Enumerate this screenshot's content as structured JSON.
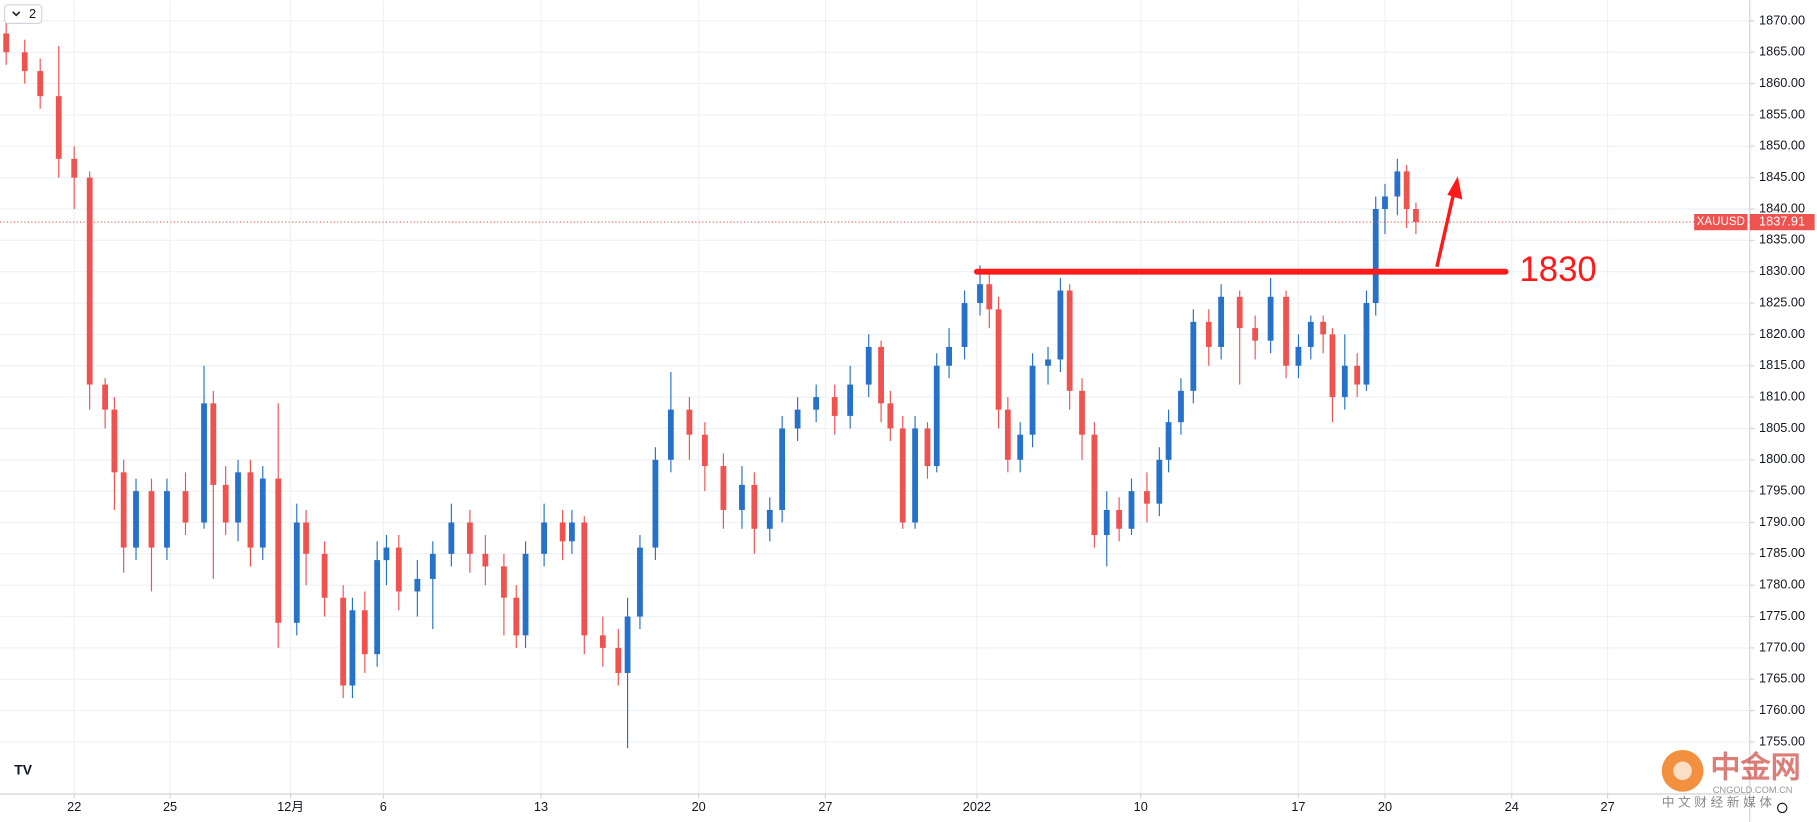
{
  "chart_data": {
    "type": "candlestick",
    "symbol": "XAUUSD",
    "up_color": "#2671c9",
    "down_color": "#ef5350",
    "grid": true,
    "x": [
      -2.2,
      -1.6,
      -1.1,
      -0.5,
      0.0,
      0.5,
      1.0,
      1.3,
      1.6,
      2.0,
      2.5,
      3.0,
      3.6,
      4.2,
      4.5,
      4.9,
      5.3,
      5.7,
      6.1,
      6.6,
      7.2,
      7.5,
      8.1,
      8.7,
      9.0,
      9.4,
      9.8,
      10.1,
      10.5,
      11.1,
      11.6,
      12.2,
      12.8,
      13.3,
      13.9,
      14.3,
      14.6,
      15.2,
      15.8,
      16.1,
      16.5,
      17.1,
      17.6,
      17.9,
      18.3,
      18.8,
      19.3,
      19.9,
      20.4,
      21.0,
      21.6,
      22.0,
      22.5,
      22.9,
      23.4,
      24.0,
      24.6,
      25.1,
      25.7,
      26.1,
      26.4,
      26.8,
      27.2,
      27.6,
      27.9,
      28.3,
      28.8,
      29.3,
      29.6,
      29.9,
      30.2,
      30.6,
      31.0,
      31.5,
      31.9,
      32.2,
      32.6,
      33.0,
      33.4,
      33.8,
      34.2,
      34.7,
      35.1,
      35.4,
      35.8,
      36.2,
      36.7,
      37.1,
      37.7,
      38.2,
      38.7,
      39.2,
      39.6,
      40.0,
      40.4,
      40.7,
      41.1,
      41.5,
      41.8,
      42.1,
      42.4,
      42.8,
      43.1,
      43.4
    ],
    "open": [
      1868,
      1865,
      1862,
      1858,
      1848,
      1845,
      1812,
      1808,
      1798,
      1786,
      1795,
      1786,
      1795,
      1790,
      1809,
      1796,
      1790,
      1798,
      1786,
      1797,
      1774,
      1790,
      1785,
      1778,
      1764,
      1776,
      1769,
      1784,
      1786,
      1779,
      1781,
      1785,
      1790,
      1785,
      1783,
      1778,
      1772,
      1785,
      1790,
      1787,
      1790,
      1772,
      1770,
      1766,
      1775,
      1786,
      1800,
      1808,
      1804,
      1799,
      1792,
      1796,
      1789,
      1792,
      1805,
      1808,
      1810,
      1807,
      1812,
      1818,
      1809,
      1805,
      1790,
      1805,
      1799,
      1815,
      1818,
      1825,
      1828,
      1824,
      1808,
      1800,
      1804,
      1815,
      1816,
      1827,
      1811,
      1804,
      1788,
      1792,
      1789,
      1795,
      1793,
      1800,
      1806,
      1811,
      1822,
      1818,
      1826,
      1821,
      1819,
      1826,
      1815,
      1818,
      1822,
      1820,
      1810,
      1815,
      1812,
      1825,
      1840,
      1842,
      1846,
      1840
    ],
    "high": [
      1870,
      1867,
      1864,
      1866,
      1850,
      1846,
      1813,
      1810,
      1800,
      1797,
      1797,
      1797,
      1798,
      1815,
      1811,
      1799,
      1800,
      1800,
      1799,
      1809,
      1793,
      1792,
      1787,
      1780,
      1778,
      1779,
      1787,
      1788,
      1788,
      1784,
      1787,
      1793,
      1792,
      1788,
      1785,
      1780,
      1787,
      1793,
      1792,
      1792,
      1791,
      1775,
      1773,
      1778,
      1788,
      1802,
      1814,
      1810,
      1806,
      1801,
      1799,
      1798,
      1794,
      1807,
      1810,
      1812,
      1812,
      1815,
      1820,
      1819,
      1811,
      1807,
      1807,
      1806,
      1817,
      1821,
      1827,
      1831,
      1830,
      1826,
      1810,
      1806,
      1817,
      1818,
      1829,
      1828,
      1813,
      1806,
      1795,
      1794,
      1797,
      1798,
      1802,
      1808,
      1813,
      1824,
      1824,
      1828,
      1827,
      1823,
      1829,
      1827,
      1820,
      1823,
      1823,
      1821,
      1820,
      1817,
      1827,
      1842,
      1844,
      1848,
      1847,
      1841
    ],
    "low": [
      1863,
      1860,
      1856,
      1845,
      1840,
      1808,
      1805,
      1792,
      1782,
      1784,
      1779,
      1784,
      1788,
      1789,
      1781,
      1788,
      1787,
      1783,
      1784,
      1770,
      1772,
      1780,
      1775,
      1762,
      1762,
      1766,
      1767,
      1780,
      1776,
      1775,
      1773,
      1783,
      1782,
      1780,
      1772,
      1770,
      1770,
      1783,
      1784,
      1785,
      1769,
      1767,
      1764,
      1754,
      1773,
      1784,
      1798,
      1800,
      1795,
      1789,
      1789,
      1785,
      1787,
      1790,
      1803,
      1806,
      1804,
      1805,
      1810,
      1806,
      1803,
      1789,
      1789,
      1797,
      1798,
      1813,
      1816,
      1823,
      1821,
      1805,
      1798,
      1798,
      1802,
      1812,
      1814,
      1808,
      1800,
      1786,
      1783,
      1787,
      1788,
      1790,
      1791,
      1798,
      1804,
      1809,
      1815,
      1816,
      1812,
      1816,
      1817,
      1813,
      1813,
      1816,
      1817,
      1806,
      1808,
      1810,
      1811,
      1823,
      1836,
      1839,
      1837,
      1836
    ],
    "close": [
      1865,
      1862,
      1858,
      1848,
      1845,
      1812,
      1808,
      1798,
      1786,
      1795,
      1786,
      1795,
      1790,
      1809,
      1796,
      1790,
      1798,
      1786,
      1797,
      1774,
      1790,
      1785,
      1778,
      1764,
      1776,
      1769,
      1784,
      1786,
      1779,
      1781,
      1785,
      1790,
      1785,
      1783,
      1778,
      1772,
      1785,
      1790,
      1787,
      1790,
      1772,
      1770,
      1766,
      1775,
      1786,
      1800,
      1808,
      1804,
      1799,
      1792,
      1796,
      1789,
      1792,
      1805,
      1808,
      1810,
      1807,
      1812,
      1818,
      1809,
      1805,
      1790,
      1805,
      1799,
      1815,
      1818,
      1825,
      1828,
      1824,
      1808,
      1800,
      1804,
      1815,
      1816,
      1827,
      1811,
      1804,
      1788,
      1792,
      1789,
      1795,
      1793,
      1800,
      1806,
      1811,
      1822,
      1818,
      1826,
      1821,
      1819,
      1826,
      1815,
      1818,
      1822,
      1820,
      1810,
      1815,
      1812,
      1825,
      1840,
      1842,
      1846,
      1840,
      1837.91
    ],
    "xlim": [
      -2.4,
      54.2
    ],
    "xticks": [
      {
        "value": 0,
        "label": "22"
      },
      {
        "value": 3.1,
        "label": "25"
      },
      {
        "value": 7.0,
        "label": "12月"
      },
      {
        "value": 10.0,
        "label": "6"
      },
      {
        "value": 15.1,
        "label": "13"
      },
      {
        "value": 20.2,
        "label": "20"
      },
      {
        "value": 24.3,
        "label": "27"
      },
      {
        "value": 29.2,
        "label": "2022"
      },
      {
        "value": 34.5,
        "label": "10"
      },
      {
        "value": 39.6,
        "label": "17"
      },
      {
        "value": 42.4,
        "label": "20"
      },
      {
        "value": 46.5,
        "label": "24"
      },
      {
        "value": 49.6,
        "label": "27"
      }
    ],
    "ylim": [
      1746.7,
      1873.3
    ],
    "yticks": [
      {
        "value": 1755,
        "label": "1755.00"
      },
      {
        "value": 1760,
        "label": "1760.00"
      },
      {
        "value": 1765,
        "label": "1765.00"
      },
      {
        "value": 1770,
        "label": "1770.00"
      },
      {
        "value": 1775,
        "label": "1775.00"
      },
      {
        "value": 1780,
        "label": "1780.00"
      },
      {
        "value": 1785,
        "label": "1785.00"
      },
      {
        "value": 1790,
        "label": "1790.00"
      },
      {
        "value": 1795,
        "label": "1795.00"
      },
      {
        "value": 1800,
        "label": "1800.00"
      },
      {
        "value": 1805,
        "label": "1805.00"
      },
      {
        "value": 1810,
        "label": "1810.00"
      },
      {
        "value": 1815,
        "label": "1815.00"
      },
      {
        "value": 1820,
        "label": "1820.00"
      },
      {
        "value": 1825,
        "label": "1825.00"
      },
      {
        "value": 1830,
        "label": "1830.00"
      },
      {
        "value": 1835,
        "label": "1835.00"
      },
      {
        "value": 1840,
        "label": "1840.00"
      },
      {
        "value": 1845,
        "label": "1845.00"
      },
      {
        "value": 1850,
        "label": "1850.00"
      },
      {
        "value": 1855,
        "label": "1855.00"
      },
      {
        "value": 1860,
        "label": "1860.00"
      },
      {
        "value": 1865,
        "label": "1865.00"
      },
      {
        "value": 1870,
        "label": "1870.00"
      }
    ],
    "annotation": {
      "level": 1830,
      "x_range": [
        29.2,
        46.3
      ],
      "color": "#ff1a1a"
    }
  },
  "ui": {
    "badge": "2",
    "watermark": {
      "brand": "中金网",
      "site": "CNGOLD.COM.CN",
      "slogan": "中 文 财 经 新 媒 体"
    }
  }
}
